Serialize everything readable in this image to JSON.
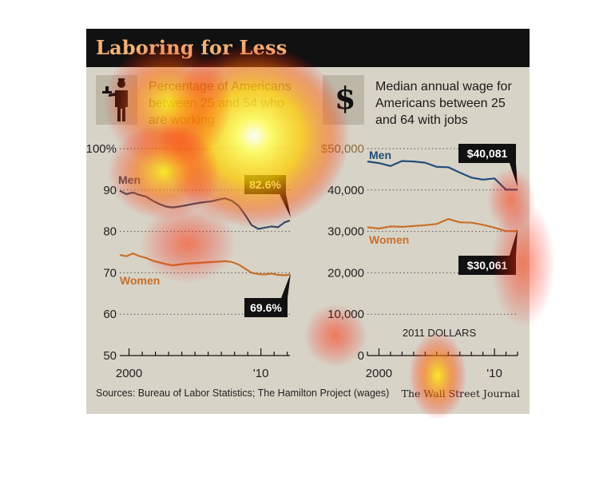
{
  "header": {
    "title": "Laboring for Less"
  },
  "left_panel": {
    "title_lines": [
      "Percentage of Americans",
      "between 25 and 54 who",
      "are working"
    ],
    "icon": "waiter-icon"
  },
  "right_panel": {
    "title_lines": [
      "Median annual wage for",
      "Americans between 25",
      "and 64 with jobs"
    ],
    "icon": "dollar-icon",
    "dollar_glyph": "$"
  },
  "footer": {
    "source": "Sources: Bureau of Labor Statistics; The Hamilton Project (wages)",
    "brand": "The Wall Street Journal"
  },
  "colors": {
    "men": "#1f4e79",
    "women": "#c8702a",
    "label_bg": "#111111",
    "label_text": "#ffffff",
    "header_bg": "#111111",
    "title": "#f2b27a",
    "background": "#d8d3c7"
  },
  "chart_data": [
    {
      "type": "line",
      "title": "Percentage of Americans between 25 and 54 who are working",
      "y_ticks": [
        "100%",
        "90",
        "80",
        "70",
        "60",
        "50"
      ],
      "y_tick_values": [
        100,
        90,
        80,
        70,
        60,
        50
      ],
      "ylim": [
        50,
        100
      ],
      "x_ticks": [
        "2000",
        "'10"
      ],
      "x_tick_values": [
        2000,
        2010
      ],
      "xlim": [
        1999.3,
        2012.2
      ],
      "grid": "dotted",
      "series": [
        {
          "name": "Men",
          "color": "#3c4a63",
          "end_label": "82.6%",
          "x": [
            1999.3,
            1999.8,
            2000.3,
            2000.8,
            2001.3,
            2001.8,
            2002.3,
            2002.8,
            2003.3,
            2003.8,
            2004.3,
            2004.8,
            2005.3,
            2005.8,
            2006.3,
            2006.8,
            2007.3,
            2007.8,
            2008.3,
            2008.8,
            2009.3,
            2009.8,
            2010.3,
            2010.8,
            2011.3,
            2011.8,
            2012.2
          ],
          "values": [
            89.8,
            89.0,
            89.4,
            88.8,
            88.4,
            87.4,
            86.6,
            86.0,
            85.8,
            86.0,
            86.3,
            86.6,
            86.9,
            87.1,
            87.3,
            87.7,
            88.0,
            87.4,
            86.2,
            84.0,
            81.5,
            80.6,
            80.9,
            81.2,
            81.0,
            82.2,
            82.6
          ]
        },
        {
          "name": "Women",
          "color": "#c8702a",
          "end_label": "69.6%",
          "x": [
            1999.3,
            1999.8,
            2000.3,
            2000.8,
            2001.3,
            2001.8,
            2002.3,
            2002.8,
            2003.3,
            2003.8,
            2004.3,
            2004.8,
            2005.3,
            2005.8,
            2006.3,
            2006.8,
            2007.3,
            2007.8,
            2008.3,
            2008.8,
            2009.3,
            2009.8,
            2010.3,
            2010.8,
            2011.3,
            2011.8,
            2012.2
          ],
          "values": [
            74.3,
            74.0,
            74.7,
            74.0,
            73.6,
            72.9,
            72.5,
            72.1,
            71.8,
            72.0,
            72.2,
            72.3,
            72.4,
            72.5,
            72.6,
            72.7,
            72.8,
            72.6,
            72.0,
            71.0,
            70.0,
            69.7,
            69.6,
            69.8,
            69.5,
            69.4,
            69.6
          ]
        }
      ]
    },
    {
      "type": "line",
      "title": "Median annual wage for Americans between 25 and 64 with jobs",
      "y_ticks": [
        "$50,000",
        "40,000",
        "30,000",
        "20,000",
        "10,000",
        "0"
      ],
      "y_tick_values": [
        50000,
        40000,
        30000,
        20000,
        10000,
        0
      ],
      "ylim": [
        0,
        50000
      ],
      "x_ticks": [
        "2000",
        "'10"
      ],
      "x_tick_values": [
        2000,
        2010
      ],
      "xlim": [
        1999,
        2012
      ],
      "grid": "dotted",
      "annotation": "2011 DOLLARS",
      "series": [
        {
          "name": "Men",
          "color": "#1f4e79",
          "end_label": "$40,081",
          "x": [
            1999,
            2000,
            2001,
            2002,
            2003,
            2004,
            2005,
            2006,
            2007,
            2008,
            2009,
            2010,
            2011,
            2012
          ],
          "values": [
            46900,
            46500,
            45800,
            47000,
            46900,
            46600,
            45600,
            45500,
            44200,
            43000,
            42500,
            42800,
            40081,
            40081
          ]
        },
        {
          "name": "Women",
          "color": "#c8702a",
          "end_label": "$30,061",
          "x": [
            1999,
            2000,
            2001,
            2002,
            2003,
            2004,
            2005,
            2006,
            2007,
            2008,
            2009,
            2010,
            2011,
            2012
          ],
          "values": [
            31000,
            30700,
            31200,
            31100,
            31300,
            31500,
            31800,
            33000,
            32200,
            32100,
            31600,
            30900,
            30061,
            30061
          ]
        }
      ]
    }
  ]
}
